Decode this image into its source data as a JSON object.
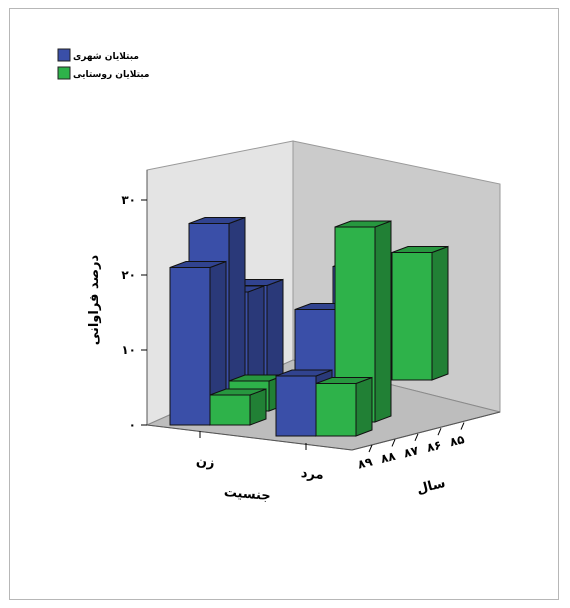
{
  "chart_data": {
    "type": "bar",
    "subtype": "3d-clustered",
    "title": "",
    "ylabel": "درصد فراوانی",
    "xlabel": "جنسیت",
    "zlabel": "سال",
    "ylim": [
      0,
      30
    ],
    "yticks": [
      "۰",
      "۱۰",
      "۲۰",
      "۳۰"
    ],
    "ytick_values": [
      0,
      10,
      20,
      30
    ],
    "categories": [
      "زن",
      "مرد"
    ],
    "years": [
      "۸۹",
      "۸۸",
      "۸۷",
      "۸۶",
      "۸۵"
    ],
    "legend_position": "top-left",
    "grid": false,
    "series": [
      {
        "name": "مبتلایان شهری",
        "color": "#3a4fa8",
        "values": [
          {
            "category": "زن",
            "year": "۸۹",
            "value": 21
          },
          {
            "category": "زن",
            "year": "۸۸",
            "value": 25
          },
          {
            "category": "زن",
            "year": "۸۷",
            "value": 14
          },
          {
            "category": "زن",
            "year": "۸۶",
            "value": 13
          },
          {
            "category": "مرد",
            "year": "۸۹",
            "value": 8
          },
          {
            "category": "مرد",
            "year": "۸۸",
            "value": 15
          },
          {
            "category": "مرد",
            "year": "۸۷",
            "value": 6
          },
          {
            "category": "مرد",
            "year": "۸۶",
            "value": 17
          }
        ]
      },
      {
        "name": "مبتلایان روستایی",
        "color": "#2eb24a",
        "values": [
          {
            "category": "زن",
            "year": "۸۹",
            "value": 4
          },
          {
            "category": "زن",
            "year": "۸۸",
            "value": 4
          },
          {
            "category": "مرد",
            "year": "۸۹",
            "value": 7
          },
          {
            "category": "مرد",
            "year": "۸۸",
            "value": 26
          },
          {
            "category": "مرد",
            "year": "۸۵",
            "value": 17
          }
        ]
      }
    ]
  }
}
